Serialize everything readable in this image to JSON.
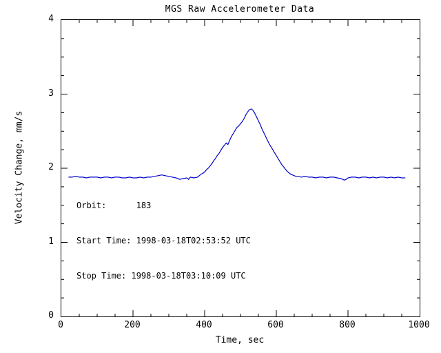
{
  "chart_data": {
    "type": "line",
    "title": "MGS Raw Accelerometer Data",
    "xlabel": "Time, sec",
    "ylabel": "Velocity Change, mm/s",
    "xlim": [
      0,
      1000
    ],
    "ylim": [
      0,
      4
    ],
    "xticks": [
      0,
      200,
      400,
      600,
      800,
      1000
    ],
    "yticks": [
      0,
      1,
      2,
      3,
      4
    ],
    "x_minor_interval": 50,
    "y_minor_interval": 0.25,
    "grid": false,
    "legend": "none",
    "line_color": "#0000cd",
    "axis_color": "#000000",
    "background_color": "#ffffff",
    "annotations": [
      "Orbit:      183",
      "Start Time: 1998-03-18T02:53:52 UTC",
      "Stop Time: 1998-03-18T03:10:09 UTC"
    ],
    "series": [
      {
        "name": "velocity-change",
        "points": [
          [
            20,
            1.88
          ],
          [
            30,
            1.88
          ],
          [
            40,
            1.89
          ],
          [
            50,
            1.88
          ],
          [
            60,
            1.88
          ],
          [
            70,
            1.87
          ],
          [
            80,
            1.88
          ],
          [
            90,
            1.88
          ],
          [
            100,
            1.88
          ],
          [
            110,
            1.87
          ],
          [
            120,
            1.88
          ],
          [
            130,
            1.88
          ],
          [
            140,
            1.87
          ],
          [
            150,
            1.88
          ],
          [
            160,
            1.88
          ],
          [
            170,
            1.87
          ],
          [
            180,
            1.87
          ],
          [
            190,
            1.88
          ],
          [
            200,
            1.87
          ],
          [
            210,
            1.87
          ],
          [
            220,
            1.88
          ],
          [
            230,
            1.87
          ],
          [
            240,
            1.88
          ],
          [
            250,
            1.88
          ],
          [
            260,
            1.89
          ],
          [
            270,
            1.9
          ],
          [
            280,
            1.91
          ],
          [
            290,
            1.9
          ],
          [
            300,
            1.89
          ],
          [
            310,
            1.88
          ],
          [
            320,
            1.87
          ],
          [
            330,
            1.85
          ],
          [
            340,
            1.86
          ],
          [
            350,
            1.87
          ],
          [
            355,
            1.85
          ],
          [
            360,
            1.88
          ],
          [
            370,
            1.87
          ],
          [
            380,
            1.88
          ],
          [
            385,
            1.9
          ],
          [
            390,
            1.92
          ],
          [
            395,
            1.93
          ],
          [
            400,
            1.95
          ],
          [
            405,
            1.98
          ],
          [
            410,
            2.0
          ],
          [
            415,
            2.03
          ],
          [
            420,
            2.06
          ],
          [
            425,
            2.1
          ],
          [
            430,
            2.13
          ],
          [
            435,
            2.17
          ],
          [
            440,
            2.2
          ],
          [
            445,
            2.24
          ],
          [
            450,
            2.28
          ],
          [
            455,
            2.31
          ],
          [
            460,
            2.34
          ],
          [
            465,
            2.32
          ],
          [
            470,
            2.38
          ],
          [
            475,
            2.43
          ],
          [
            480,
            2.47
          ],
          [
            485,
            2.51
          ],
          [
            490,
            2.55
          ],
          [
            495,
            2.57
          ],
          [
            500,
            2.6
          ],
          [
            505,
            2.63
          ],
          [
            510,
            2.67
          ],
          [
            515,
            2.72
          ],
          [
            520,
            2.76
          ],
          [
            525,
            2.79
          ],
          [
            530,
            2.8
          ],
          [
            535,
            2.78
          ],
          [
            540,
            2.74
          ],
          [
            545,
            2.69
          ],
          [
            550,
            2.64
          ],
          [
            555,
            2.59
          ],
          [
            560,
            2.53
          ],
          [
            565,
            2.48
          ],
          [
            570,
            2.43
          ],
          [
            575,
            2.38
          ],
          [
            580,
            2.33
          ],
          [
            585,
            2.29
          ],
          [
            590,
            2.25
          ],
          [
            595,
            2.21
          ],
          [
            600,
            2.17
          ],
          [
            605,
            2.13
          ],
          [
            610,
            2.09
          ],
          [
            615,
            2.05
          ],
          [
            620,
            2.02
          ],
          [
            625,
            1.99
          ],
          [
            630,
            1.96
          ],
          [
            635,
            1.94
          ],
          [
            640,
            1.92
          ],
          [
            645,
            1.91
          ],
          [
            650,
            1.9
          ],
          [
            655,
            1.89
          ],
          [
            660,
            1.89
          ],
          [
            670,
            1.88
          ],
          [
            680,
            1.89
          ],
          [
            690,
            1.88
          ],
          [
            700,
            1.88
          ],
          [
            710,
            1.87
          ],
          [
            720,
            1.88
          ],
          [
            730,
            1.88
          ],
          [
            740,
            1.87
          ],
          [
            750,
            1.88
          ],
          [
            760,
            1.88
          ],
          [
            770,
            1.87
          ],
          [
            780,
            1.86
          ],
          [
            790,
            1.84
          ],
          [
            795,
            1.85
          ],
          [
            800,
            1.87
          ],
          [
            810,
            1.88
          ],
          [
            820,
            1.88
          ],
          [
            830,
            1.87
          ],
          [
            840,
            1.88
          ],
          [
            850,
            1.88
          ],
          [
            860,
            1.87
          ],
          [
            870,
            1.88
          ],
          [
            880,
            1.87
          ],
          [
            890,
            1.88
          ],
          [
            900,
            1.88
          ],
          [
            910,
            1.87
          ],
          [
            920,
            1.88
          ],
          [
            930,
            1.87
          ],
          [
            940,
            1.88
          ],
          [
            950,
            1.87
          ],
          [
            960,
            1.87
          ]
        ]
      }
    ]
  }
}
